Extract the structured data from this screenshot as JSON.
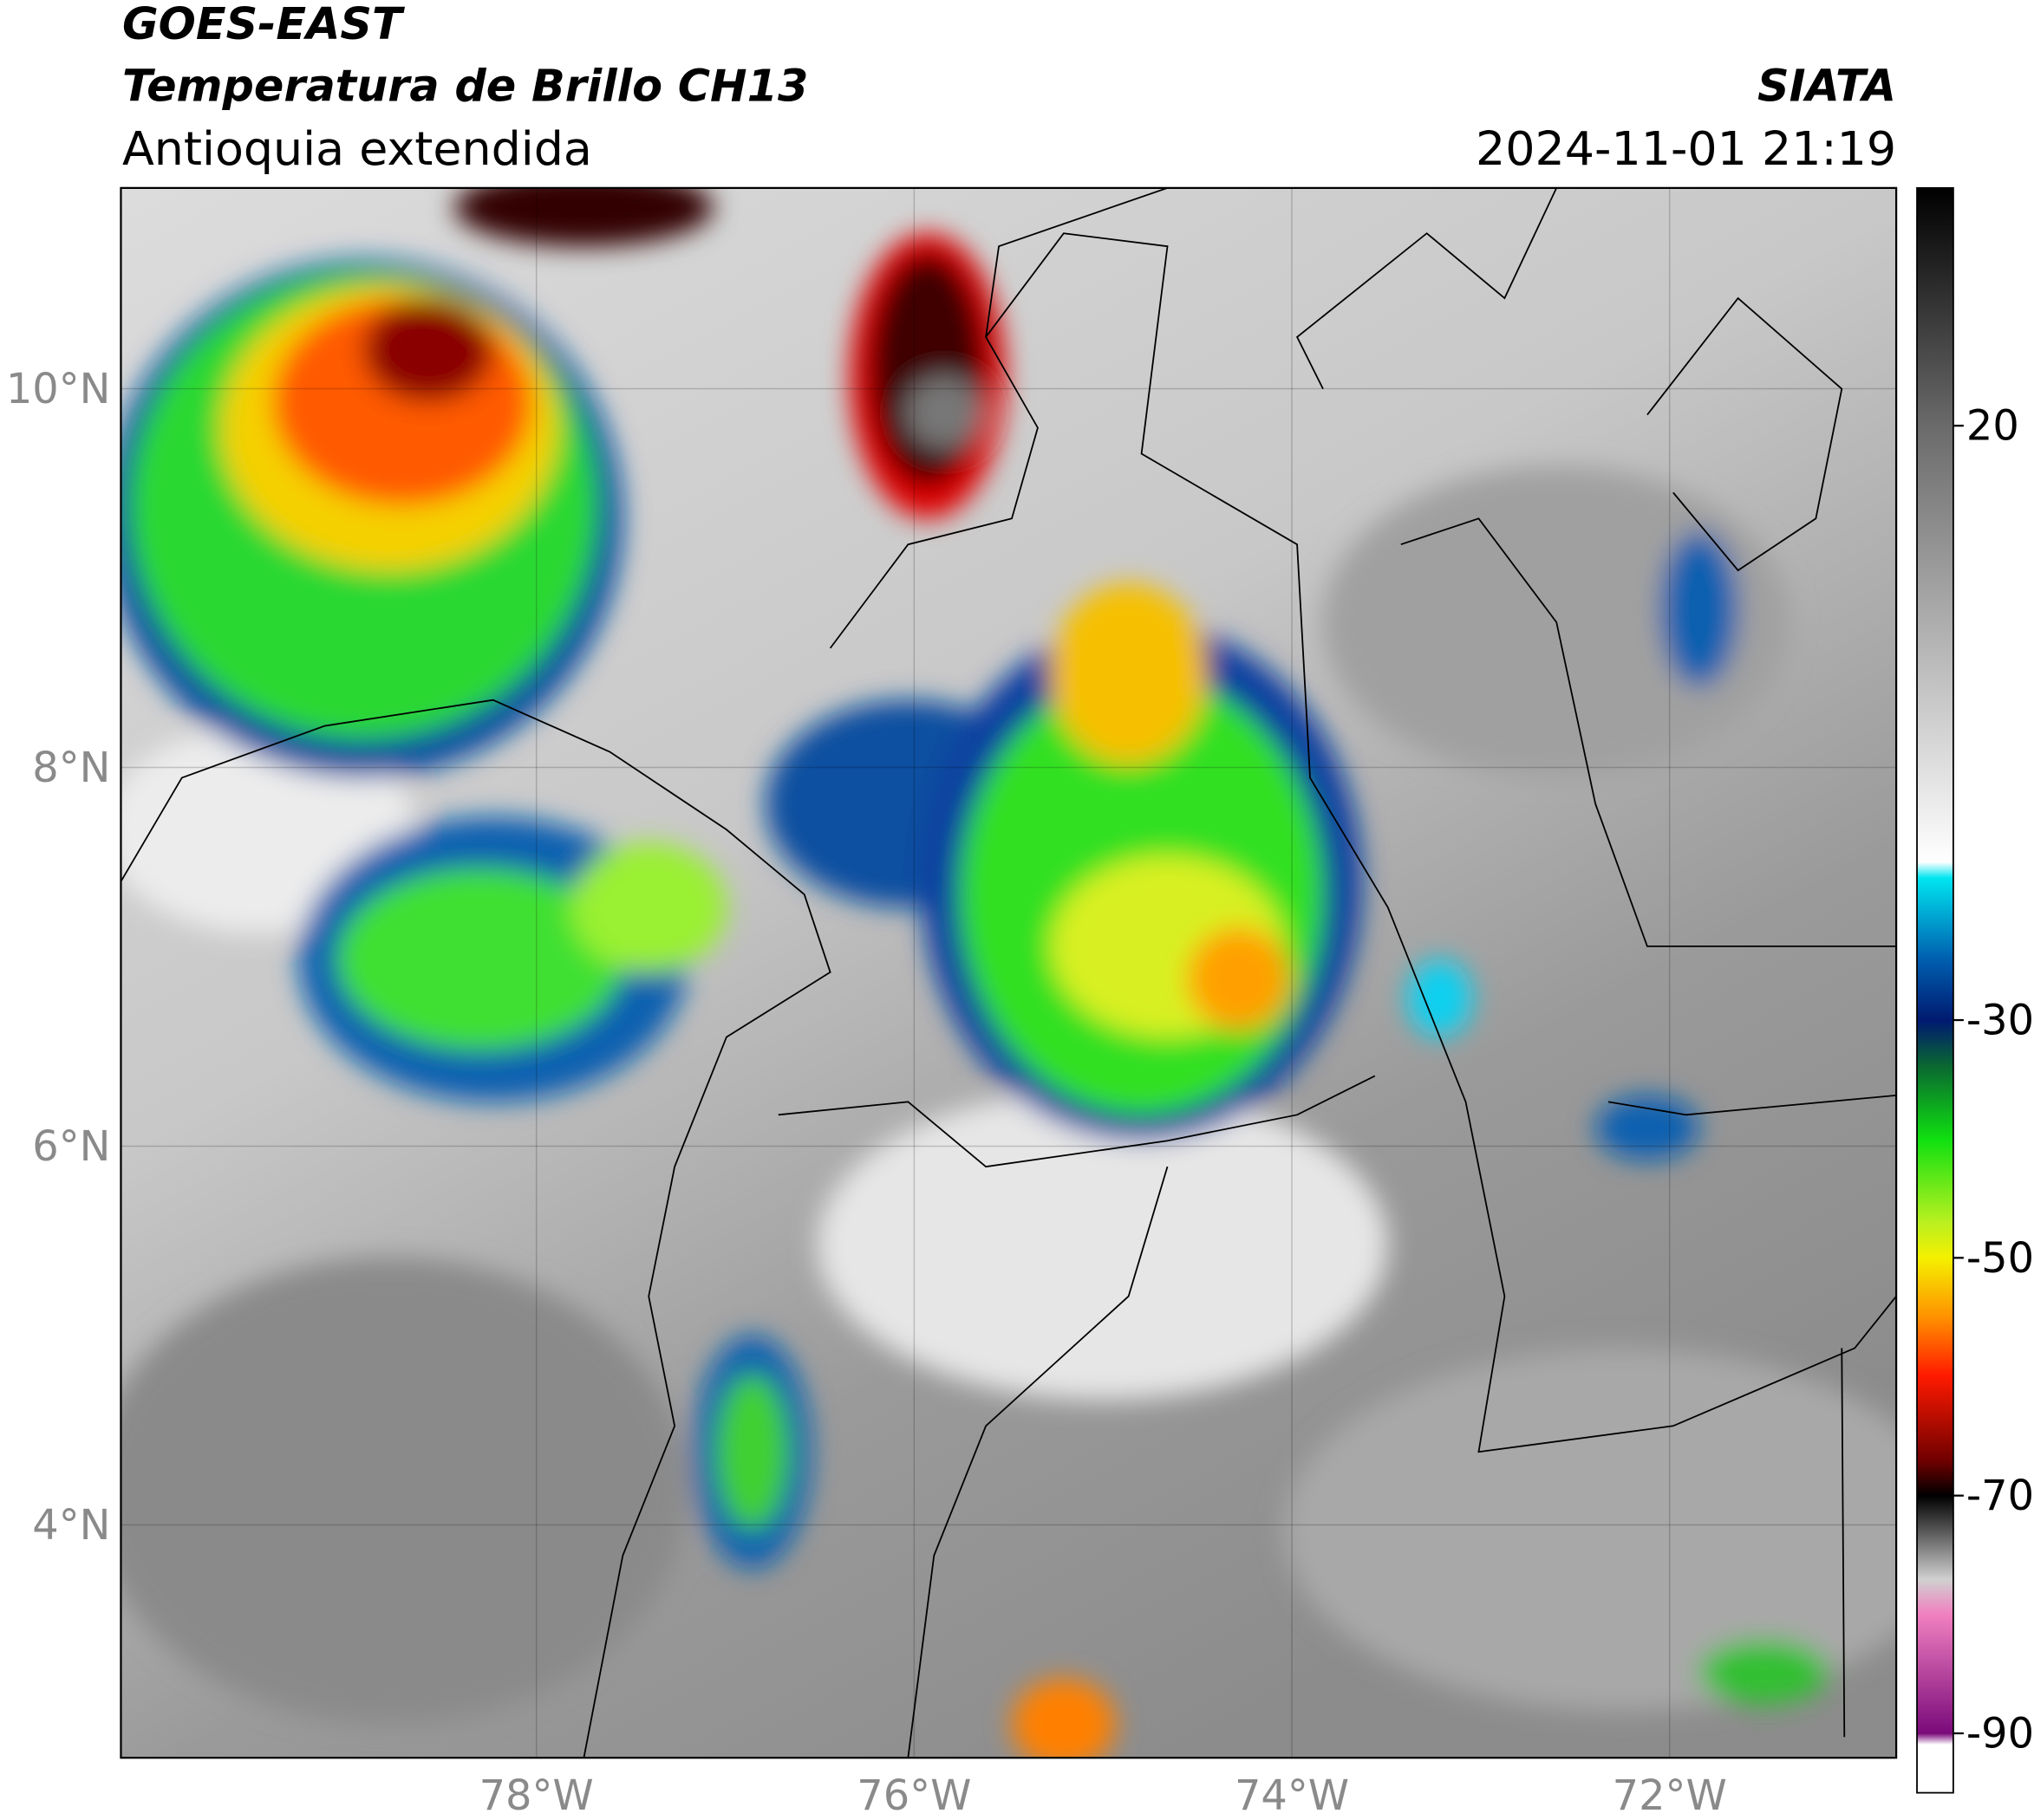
{
  "header": {
    "satellite": "GOES-EAST",
    "product": "Temperatura de Brillo CH13",
    "region": "Antioquia extendida",
    "source": "SIATA",
    "datetime": "2024-11-01 21:19"
  },
  "map": {
    "xlim": [
      -80.2,
      -70.8
    ],
    "ylim": [
      2.77,
      11.06
    ],
    "grid": true,
    "xticks": [
      {
        "value": -78,
        "label": "78°W"
      },
      {
        "value": -76,
        "label": "76°W"
      },
      {
        "value": -74,
        "label": "74°W"
      },
      {
        "value": -72,
        "label": "72°W"
      }
    ],
    "yticks": [
      {
        "value": 4,
        "label": "4°N"
      },
      {
        "value": 6,
        "label": "6°N"
      },
      {
        "value": 8,
        "label": "8°N"
      },
      {
        "value": 10,
        "label": "10°N"
      }
    ]
  },
  "colorbar": {
    "ylim": [
      -95,
      40
    ],
    "yticks": [
      -90,
      -70,
      -50,
      -30,
      20
    ]
  }
}
